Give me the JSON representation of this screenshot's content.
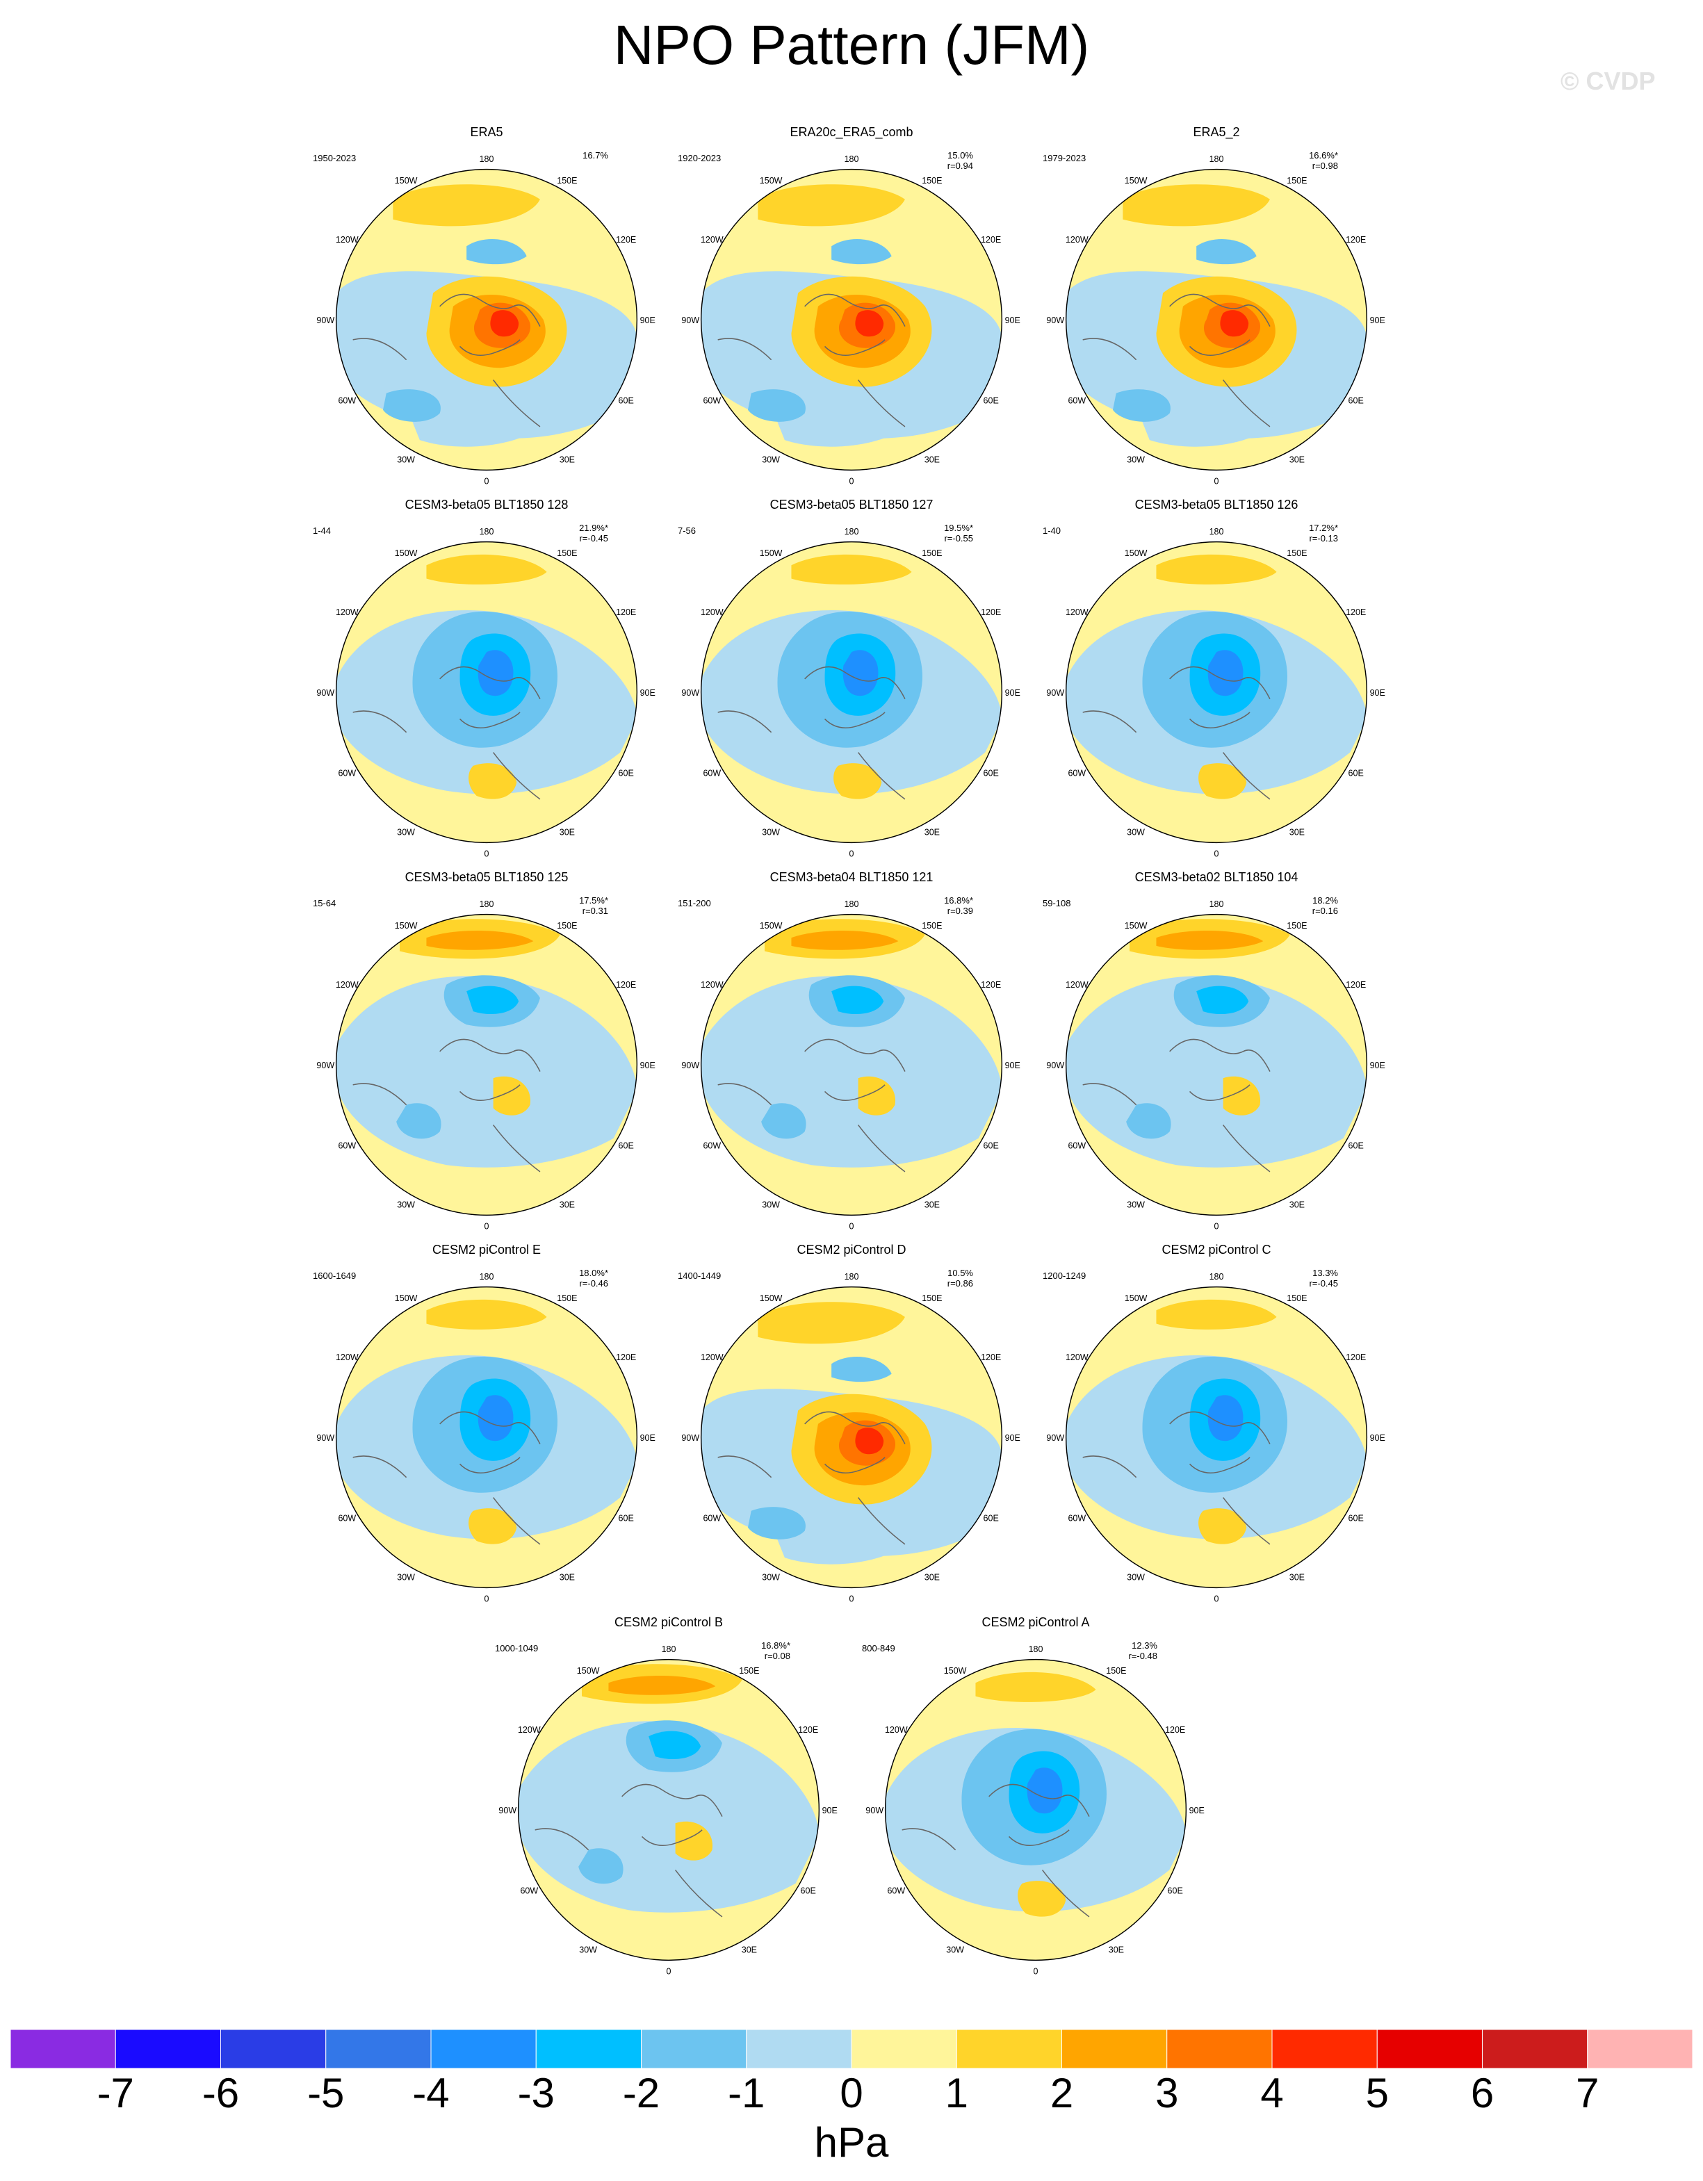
{
  "title": "NPO Pattern (JFM)",
  "watermark": "© CVDP",
  "panels": [
    {
      "title": "ERA5",
      "years": "1950-2023",
      "stats": "16.7%",
      "pattern": "pos"
    },
    {
      "title": "ERA20c_ERA5_comb",
      "years": "1920-2023",
      "stats": "15.0%\nr=0.94",
      "pattern": "pos"
    },
    {
      "title": "ERA5_2",
      "years": "1979-2023",
      "stats": "16.6%*\nr=0.98",
      "pattern": "pos"
    },
    {
      "title": "CESM3-beta05 BLT1850 128",
      "years": "1-44",
      "stats": "21.9%*\nr=-0.45",
      "pattern": "neg"
    },
    {
      "title": "CESM3-beta05 BLT1850 127",
      "years": "7-56",
      "stats": "19.5%*\nr=-0.55",
      "pattern": "neg"
    },
    {
      "title": "CESM3-beta05 BLT1850 126",
      "years": "1-40",
      "stats": "17.2%*\nr=-0.13",
      "pattern": "neg"
    },
    {
      "title": "CESM3-beta05 BLT1850 125",
      "years": "15-64",
      "stats": "17.5%*\nr=0.31",
      "pattern": "mix"
    },
    {
      "title": "CESM3-beta04 BLT1850 121",
      "years": "151-200",
      "stats": "16.8%*\nr=0.39",
      "pattern": "mix"
    },
    {
      "title": "CESM3-beta02 BLT1850 104",
      "years": "59-108",
      "stats": "18.2%\nr=0.16",
      "pattern": "mix"
    },
    {
      "title": "CESM2 piControl E",
      "years": "1600-1649",
      "stats": "18.0%*\nr=-0.46",
      "pattern": "neg"
    },
    {
      "title": "CESM2 piControl D",
      "years": "1400-1449",
      "stats": "10.5%\nr=0.86",
      "pattern": "pos"
    },
    {
      "title": "CESM2 piControl C",
      "years": "1200-1249",
      "stats": "13.3%\nr=-0.45",
      "pattern": "neg"
    },
    {
      "title": "CESM2 piControl B",
      "years": "1000-1049",
      "stats": "16.8%*\nr=0.08",
      "pattern": "mix"
    },
    {
      "title": "CESM2 piControl A",
      "years": "800-849",
      "stats": "12.3%\nr=-0.48",
      "pattern": "neg"
    }
  ],
  "lon_labels": [
    "180",
    "150E",
    "120E",
    "90E",
    "60E",
    "30E",
    "0",
    "30W",
    "60W",
    "90W",
    "120W",
    "150W"
  ],
  "colorbar": {
    "labels": [
      "-7",
      "-6",
      "-5",
      "-4",
      "-3",
      "-2",
      "-1",
      "0",
      "1",
      "2",
      "3",
      "4",
      "5",
      "6",
      "7"
    ],
    "colors": [
      "#8a2be2",
      "#1a0bff",
      "#2a3de6",
      "#3377e8",
      "#1e90ff",
      "#00bfff",
      "#6cc4f0",
      "#b0dbf2",
      "#fff59a",
      "#ffd42a",
      "#ffa500",
      "#ff7400",
      "#ff2a00",
      "#e60000",
      "#cc1c1c",
      "#ffb3b3"
    ],
    "units": "hPa"
  },
  "palette": {
    "land_line": "#666666"
  }
}
